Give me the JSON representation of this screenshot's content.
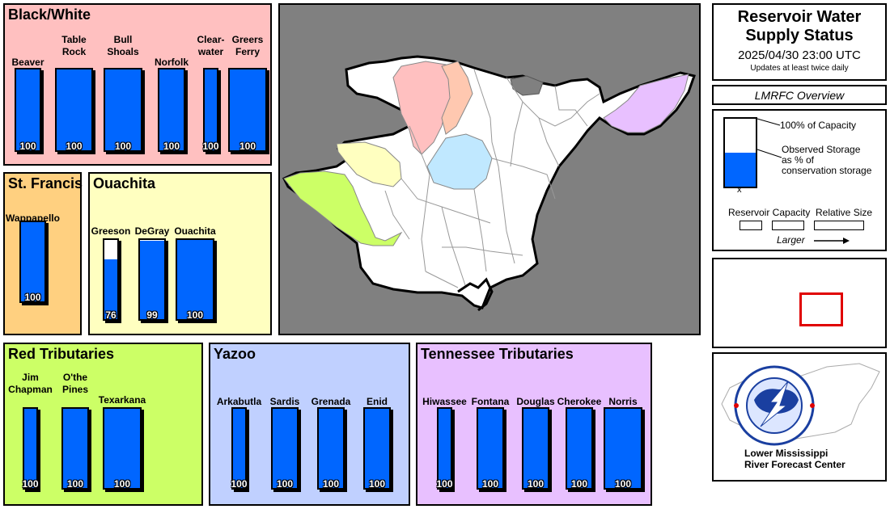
{
  "colors": {
    "fill": "#0066ff",
    "black_white": "#ffc0c0",
    "st_francis": "#ffd080",
    "ouachita": "#ffffc0",
    "red": "#ccff66",
    "yazoo": "#c0d0ff",
    "tennessee": "#e8c0ff"
  },
  "groups": {
    "black_white": {
      "title": "Black/White",
      "reservoirs": [
        {
          "name": "Beaver",
          "pct": 100,
          "fill": 1.0
        },
        {
          "name": "Table\nRock",
          "pct": 100,
          "fill": 1.0
        },
        {
          "name": "Bull\nShoals",
          "pct": 100,
          "fill": 1.0
        },
        {
          "name": "Norfolk",
          "pct": 100,
          "fill": 1.0
        },
        {
          "name": "Clear-\nwater",
          "pct": 100,
          "fill": 1.0
        },
        {
          "name": "Greers\nFerry",
          "pct": 100,
          "fill": 1.0
        }
      ]
    },
    "st_francis": {
      "title": "St. Francis",
      "reservoirs": [
        {
          "name": "Wappapello",
          "pct": 100,
          "fill": 1.0
        }
      ]
    },
    "ouachita": {
      "title": "Ouachita",
      "reservoirs": [
        {
          "name": "Greeson",
          "pct": 76,
          "fill": 0.76
        },
        {
          "name": "DeGray",
          "pct": 99,
          "fill": 0.99
        },
        {
          "name": "Ouachita",
          "pct": 100,
          "fill": 1.0
        }
      ]
    },
    "red": {
      "title": "Red Tributaries",
      "reservoirs": [
        {
          "name": "Jim\nChapman",
          "pct": 100,
          "fill": 1.0
        },
        {
          "name": "O'the\nPines",
          "pct": 100,
          "fill": 1.0
        },
        {
          "name": "Texarkana",
          "pct": 100,
          "fill": 1.0
        }
      ]
    },
    "yazoo": {
      "title": "Yazoo",
      "reservoirs": [
        {
          "name": "Arkabutla",
          "pct": 100,
          "fill": 1.0
        },
        {
          "name": "Sardis",
          "pct": 100,
          "fill": 1.0
        },
        {
          "name": "Grenada",
          "pct": 100,
          "fill": 1.0
        },
        {
          "name": "Enid",
          "pct": 100,
          "fill": 1.0
        }
      ]
    },
    "tennessee": {
      "title": "Tennessee Tributaries",
      "reservoirs": [
        {
          "name": "Hiwassee",
          "pct": 100,
          "fill": 1.0
        },
        {
          "name": "Fontana",
          "pct": 100,
          "fill": 1.0
        },
        {
          "name": "Douglas",
          "pct": 100,
          "fill": 1.0
        },
        {
          "name": "Cherokee",
          "pct": 100,
          "fill": 1.0
        },
        {
          "name": "Norris",
          "pct": 100,
          "fill": 1.0
        }
      ]
    }
  },
  "header": {
    "title_line1": "Reservoir Water",
    "title_line2": "Supply Status",
    "datetime": "2025/04/30 23:00 UTC",
    "update_note": "Updates at least twice daily"
  },
  "overview_link": "LMRFC Overview",
  "legend": {
    "capacity": "100% of Capacity",
    "observed_1": "Observed Storage",
    "observed_2": "as % of",
    "observed_3": "conservation storage",
    "x_mark": "x",
    "cap_label": "Reservoir Capacity",
    "size_label": "Relative Size",
    "larger": "Larger"
  },
  "logo": {
    "line1": "Lower Mississippi",
    "line2": "River Forecast Center"
  }
}
